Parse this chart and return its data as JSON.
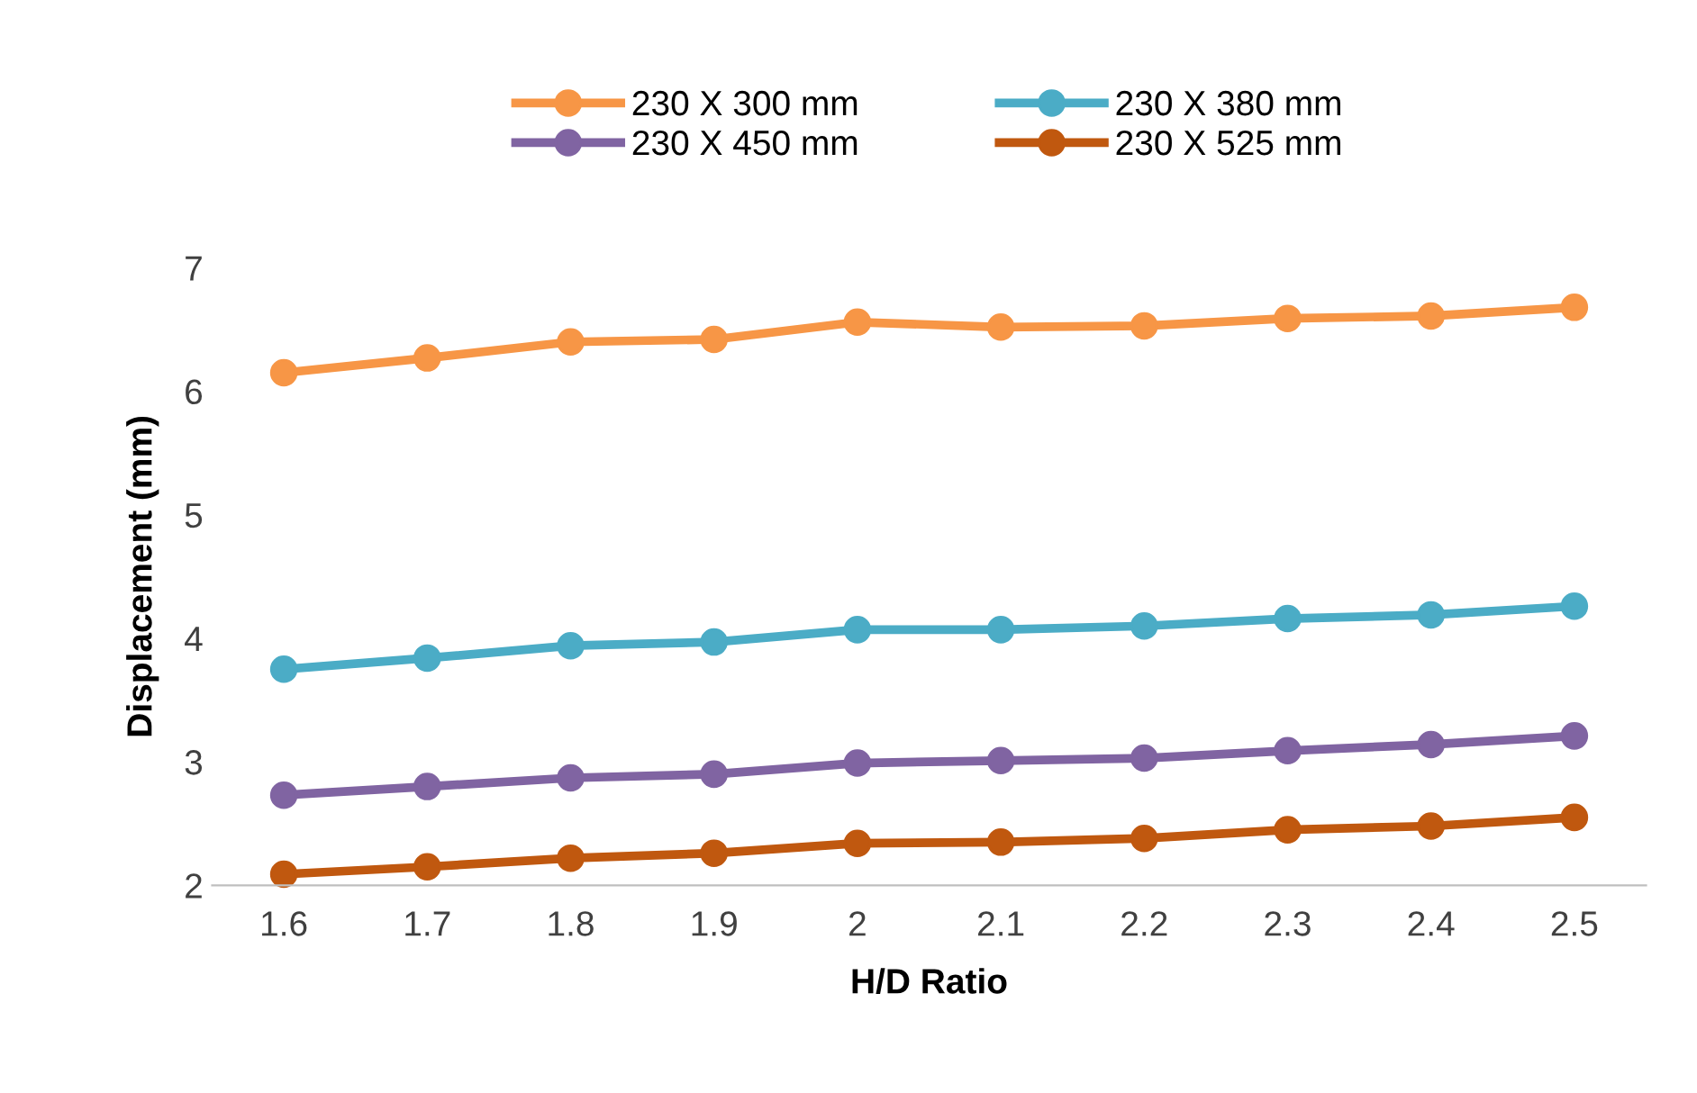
{
  "chart_data": {
    "type": "line",
    "xlabel": "H/D Ratio",
    "ylabel": "Displacement (mm)",
    "categories": [
      "1.6",
      "1.7",
      "1.8",
      "1.9",
      "2",
      "2.1",
      "2.2",
      "2.3",
      "2.4",
      "2.5"
    ],
    "series": [
      {
        "name": "230 X 300 mm",
        "color": "#f79646",
        "values": [
          6.15,
          6.27,
          6.4,
          6.42,
          6.56,
          6.52,
          6.53,
          6.59,
          6.61,
          6.68
        ]
      },
      {
        "name": "230 X 380 mm",
        "color": "#4bacc6",
        "values": [
          3.75,
          3.84,
          3.94,
          3.97,
          4.07,
          4.07,
          4.1,
          4.16,
          4.19,
          4.26
        ]
      },
      {
        "name": "230 X 450 mm",
        "color": "#8064a2",
        "values": [
          2.73,
          2.8,
          2.87,
          2.9,
          2.99,
          3.01,
          3.03,
          3.09,
          3.14,
          3.21
        ]
      },
      {
        "name": "230 X 525 mm",
        "color": "#c0580f",
        "values": [
          2.09,
          2.15,
          2.22,
          2.26,
          2.34,
          2.35,
          2.38,
          2.45,
          2.48,
          2.55
        ]
      }
    ],
    "ylim": [
      2,
      7
    ],
    "yticks": [
      2,
      3,
      4,
      5,
      6,
      7
    ],
    "grid": false,
    "legend": "top",
    "marker": "circle",
    "line_style": "solid"
  }
}
